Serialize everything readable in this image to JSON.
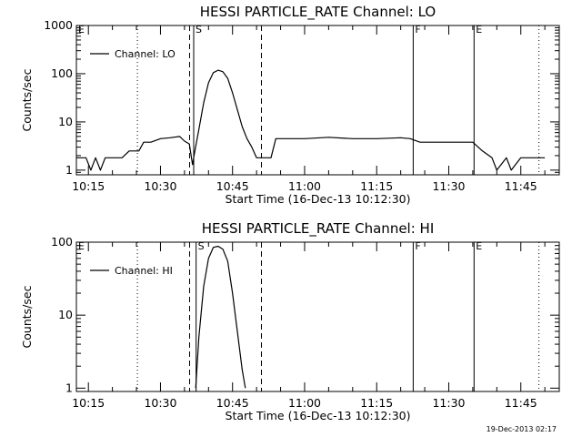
{
  "chart_data": [
    {
      "type": "line",
      "title": "HESSI PARTICLE_RATE Channel: LO",
      "xlabel": "Start Time (16-Dec-13 10:12:30)",
      "ylabel": "Counts/sec",
      "yscale": "log",
      "ylim": [
        0.8,
        1000
      ],
      "xlim": [
        "10:12:30",
        "11:53:00"
      ],
      "x_ticks": [
        "10:15",
        "10:30",
        "10:45",
        "11:00",
        "11:15",
        "11:30",
        "11:45"
      ],
      "y_ticks": [
        "1",
        "10",
        "100",
        "1000"
      ],
      "legend": {
        "label": "Channel: LO",
        "position": "top-left"
      },
      "markers": [
        {
          "time": "10:12:30",
          "label": "E",
          "style": "solid"
        },
        {
          "time": "10:36:55",
          "label": "S",
          "style": "solid"
        },
        {
          "time": "11:22:36",
          "label": "F",
          "style": "solid"
        },
        {
          "time": "11:35:16",
          "label": "E",
          "style": "solid"
        }
      ],
      "guide_lines": [
        {
          "time": "10:25:12",
          "style": "dotted"
        },
        {
          "time": "10:36:04",
          "style": "dashed"
        },
        {
          "time": "10:51:01",
          "style": "dashed"
        },
        {
          "time": "11:48:46",
          "style": "dotted"
        }
      ],
      "series": [
        {
          "name": "Channel: LO",
          "x": [
            "10:12:30",
            "10:14:30",
            "10:15:30",
            "10:16:30",
            "10:17:30",
            "10:18:30",
            "10:20:00",
            "10:22:00",
            "10:23:30",
            "10:25:30",
            "10:26:30",
            "10:28:00",
            "10:30:00",
            "10:32:00",
            "10:34:00",
            "10:35:00",
            "10:36:00",
            "10:36:40",
            "10:37:10",
            "10:38:00",
            "10:39:00",
            "10:40:00",
            "10:41:00",
            "10:42:00",
            "10:43:00",
            "10:44:00",
            "10:45:00",
            "10:46:00",
            "10:47:00",
            "10:48:00",
            "10:49:00",
            "10:50:00",
            "10:51:00",
            "10:53:00",
            "10:54:00",
            "10:57:00",
            "11:00:00",
            "11:05:00",
            "11:10:00",
            "11:15:00",
            "11:20:00",
            "11:22:00",
            "11:24:00",
            "11:27:00",
            "11:30:00",
            "11:33:00",
            "11:35:00",
            "11:37:00",
            "11:39:00",
            "11:40:00",
            "11:42:00",
            "11:43:00",
            "11:45:00",
            "11:46:00",
            "11:48:00",
            "11:50:00"
          ],
          "y": [
            1.8,
            1.8,
            1.0,
            1.8,
            1.0,
            1.8,
            1.8,
            1.8,
            2.5,
            2.5,
            3.8,
            3.8,
            4.5,
            4.7,
            5.0,
            4.0,
            3.5,
            1.3,
            2.5,
            7.0,
            25,
            65,
            105,
            118,
            110,
            80,
            40,
            18,
            8,
            4.5,
            3.0,
            1.8,
            1.8,
            1.8,
            4.5,
            4.5,
            4.5,
            4.8,
            4.5,
            4.5,
            4.7,
            4.5,
            3.8,
            3.8,
            3.8,
            3.8,
            3.8,
            2.5,
            1.8,
            1.0,
            1.8,
            1.0,
            1.8,
            1.8,
            1.8,
            1.8
          ]
        }
      ]
    },
    {
      "type": "line",
      "title": "HESSI PARTICLE_RATE Channel: HI",
      "xlabel": "Start Time (16-Dec-13 10:12:30)",
      "ylabel": "Counts/sec",
      "yscale": "log",
      "ylim": [
        0.9,
        100
      ],
      "xlim": [
        "10:12:30",
        "11:53:00"
      ],
      "x_ticks": [
        "10:15",
        "10:30",
        "10:45",
        "11:00",
        "11:15",
        "11:30",
        "11:45"
      ],
      "y_ticks": [
        "1",
        "10",
        "100"
      ],
      "legend": {
        "label": "Channel: HI",
        "position": "top-left"
      },
      "markers": [
        {
          "time": "10:12:30",
          "label": "E",
          "style": "solid"
        },
        {
          "time": "10:37:25",
          "label": "S",
          "style": "solid"
        },
        {
          "time": "11:22:36",
          "label": "F",
          "style": "solid"
        },
        {
          "time": "11:35:16",
          "label": "E",
          "style": "solid"
        }
      ],
      "guide_lines": [
        {
          "time": "10:25:12",
          "style": "dotted"
        },
        {
          "time": "10:36:04",
          "style": "dashed"
        },
        {
          "time": "10:51:01",
          "style": "dashed"
        },
        {
          "time": "11:48:46",
          "style": "dotted"
        }
      ],
      "series": [
        {
          "name": "Channel: HI",
          "x": [
            "10:37:20",
            "10:38:00",
            "10:39:00",
            "10:40:00",
            "10:41:00",
            "10:42:00",
            "10:43:00",
            "10:44:00",
            "10:45:00",
            "10:46:00",
            "10:47:00",
            "10:47:40"
          ],
          "y": [
            1.0,
            5.0,
            25,
            60,
            85,
            88,
            80,
            55,
            20,
            6,
            1.8,
            1.0
          ]
        }
      ]
    }
  ],
  "footer": {
    "timestamp": "19-Dec-2013 02:17"
  }
}
